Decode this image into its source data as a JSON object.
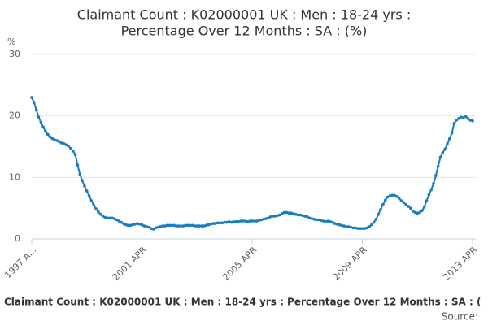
{
  "chart_data": {
    "type": "line",
    "title": [
      "Claimant Count : K02000001 UK : Men : 18-24 yrs :",
      "Percentage Over 12 Months : SA : (%)"
    ],
    "y_label": "%",
    "footer": "Claimant Count : K02000001 UK : Men : 18-24 yrs : Percentage Over 12 Months : SA : (",
    "source": "Source:",
    "x": [
      "1997 APR",
      "1997 MAY",
      "1997 JUN",
      "1997 JUL",
      "1997 AUG",
      "1997 SEP",
      "1997 OCT",
      "1997 NOV",
      "1997 DEC",
      "1998 JAN",
      "1998 FEB",
      "1998 MAR",
      "1998 APR",
      "1998 MAY",
      "1998 JUN",
      "1998 JUL",
      "1998 AUG",
      "1998 SEP",
      "1998 OCT",
      "1998 NOV",
      "1998 DEC",
      "1999 JAN",
      "1999 FEB",
      "1999 MAR",
      "1999 APR",
      "1999 MAY",
      "1999 JUN",
      "1999 JUL",
      "1999 AUG",
      "1999 SEP",
      "1999 OCT",
      "1999 NOV",
      "1999 DEC",
      "2000 JAN",
      "2000 FEB",
      "2000 MAR",
      "2000 APR",
      "2000 MAY",
      "2000 JUN",
      "2000 JUL",
      "2000 AUG",
      "2000 SEP",
      "2000 OCT",
      "2000 NOV",
      "2000 DEC",
      "2001 JAN",
      "2001 FEB",
      "2001 MAR",
      "2001 APR",
      "2001 MAY",
      "2001 JUN",
      "2001 JUL",
      "2001 AUG",
      "2001 SEP",
      "2001 OCT",
      "2001 NOV",
      "2001 DEC",
      "2002 JAN",
      "2002 FEB",
      "2002 MAR",
      "2002 APR",
      "2002 MAY",
      "2002 JUN",
      "2002 JUL",
      "2002 AUG",
      "2002 SEP",
      "2002 OCT",
      "2002 NOV",
      "2002 DEC",
      "2003 JAN",
      "2003 FEB",
      "2003 MAR",
      "2003 APR",
      "2003 MAY",
      "2003 JUN",
      "2003 JUL",
      "2003 AUG",
      "2003 SEP",
      "2003 OCT",
      "2003 NOV",
      "2003 DEC",
      "2004 JAN",
      "2004 FEB",
      "2004 MAR",
      "2004 APR",
      "2004 MAY",
      "2004 JUN",
      "2004 JUL",
      "2004 AUG",
      "2004 SEP",
      "2004 OCT",
      "2004 NOV",
      "2004 DEC",
      "2005 JAN",
      "2005 FEB",
      "2005 MAR",
      "2005 APR",
      "2005 MAY",
      "2005 JUN",
      "2005 JUL",
      "2005 AUG",
      "2005 SEP",
      "2005 OCT",
      "2005 NOV",
      "2005 DEC",
      "2006 JAN",
      "2006 FEB",
      "2006 MAR",
      "2006 APR",
      "2006 MAY",
      "2006 JUN",
      "2006 JUL",
      "2006 AUG",
      "2006 SEP",
      "2006 OCT",
      "2006 NOV",
      "2006 DEC",
      "2007 JAN",
      "2007 FEB",
      "2007 MAR",
      "2007 APR",
      "2007 MAY",
      "2007 JUN",
      "2007 JUL",
      "2007 AUG",
      "2007 SEP",
      "2007 OCT",
      "2007 NOV",
      "2007 DEC",
      "2008 JAN",
      "2008 FEB",
      "2008 MAR",
      "2008 APR",
      "2008 MAY",
      "2008 JUN",
      "2008 JUL",
      "2008 AUG",
      "2008 SEP",
      "2008 OCT",
      "2008 NOV",
      "2008 DEC",
      "2009 JAN",
      "2009 FEB",
      "2009 MAR",
      "2009 APR",
      "2009 MAY",
      "2009 JUN",
      "2009 JUL",
      "2009 AUG",
      "2009 SEP",
      "2009 OCT",
      "2009 NOV",
      "2009 DEC",
      "2010 JAN",
      "2010 FEB",
      "2010 MAR",
      "2010 APR",
      "2010 MAY",
      "2010 JUN",
      "2010 JUL",
      "2010 AUG",
      "2010 SEP",
      "2010 OCT",
      "2010 NOV",
      "2010 DEC",
      "2011 JAN",
      "2011 FEB",
      "2011 MAR",
      "2011 APR",
      "2011 MAY",
      "2011 JUN",
      "2011 JUL",
      "2011 AUG",
      "2011 SEP",
      "2011 OCT",
      "2011 NOV",
      "2011 DEC",
      "2012 JAN",
      "2012 FEB",
      "2012 MAR",
      "2012 APR",
      "2012 MAY",
      "2012 JUN",
      "2012 JUL",
      "2012 AUG",
      "2012 SEP",
      "2012 OCT",
      "2012 NOV",
      "2012 DEC",
      "2013 JAN",
      "2013 FEB",
      "2013 MAR",
      "2013 APR"
    ],
    "values": [
      23.0,
      22.2,
      21.0,
      19.8,
      19.0,
      18.2,
      17.5,
      17.0,
      16.6,
      16.3,
      16.1,
      16.0,
      15.8,
      15.6,
      15.5,
      15.3,
      15.1,
      14.7,
      14.3,
      13.7,
      12.0,
      10.5,
      9.5,
      8.6,
      7.8,
      7.0,
      6.2,
      5.5,
      4.9,
      4.4,
      4.0,
      3.7,
      3.5,
      3.4,
      3.4,
      3.4,
      3.3,
      3.1,
      2.9,
      2.7,
      2.5,
      2.3,
      2.2,
      2.2,
      2.3,
      2.4,
      2.5,
      2.4,
      2.3,
      2.1,
      2.0,
      1.9,
      1.7,
      1.6,
      1.8,
      1.9,
      2.0,
      2.1,
      2.1,
      2.2,
      2.2,
      2.2,
      2.2,
      2.1,
      2.1,
      2.1,
      2.1,
      2.2,
      2.2,
      2.2,
      2.2,
      2.1,
      2.1,
      2.1,
      2.1,
      2.1,
      2.2,
      2.3,
      2.4,
      2.5,
      2.5,
      2.6,
      2.6,
      2.6,
      2.7,
      2.7,
      2.8,
      2.7,
      2.8,
      2.8,
      2.8,
      2.9,
      2.9,
      2.9,
      2.8,
      2.9,
      2.9,
      2.9,
      2.9,
      3.0,
      3.1,
      3.2,
      3.3,
      3.4,
      3.6,
      3.7,
      3.7,
      3.8,
      3.9,
      4.1,
      4.3,
      4.3,
      4.2,
      4.2,
      4.1,
      4.0,
      3.9,
      3.9,
      3.8,
      3.7,
      3.6,
      3.4,
      3.3,
      3.2,
      3.1,
      3.1,
      3.0,
      2.9,
      2.8,
      2.9,
      2.8,
      2.7,
      2.5,
      2.4,
      2.3,
      2.2,
      2.1,
      2.0,
      2.0,
      1.9,
      1.8,
      1.8,
      1.7,
      1.7,
      1.7,
      1.7,
      1.8,
      2.0,
      2.3,
      2.7,
      3.2,
      4.0,
      4.8,
      5.6,
      6.3,
      6.8,
      7.0,
      7.1,
      7.1,
      6.9,
      6.6,
      6.2,
      5.9,
      5.6,
      5.3,
      5.0,
      4.5,
      4.3,
      4.2,
      4.3,
      4.6,
      5.2,
      6.2,
      7.2,
      8.0,
      9.0,
      10.3,
      11.8,
      13.3,
      14.0,
      14.6,
      15.4,
      16.3,
      17.2,
      18.8,
      19.3,
      19.6,
      19.8,
      19.7,
      19.9,
      19.6,
      19.3,
      19.2
    ],
    "color": "#1a7bbf",
    "ylim": [
      0,
      30
    ],
    "yticks": [
      0,
      10,
      20,
      30
    ],
    "xticks": [
      {
        "value": "1997 APR",
        "label": "1997 A..."
      },
      "2001 APR",
      "2005 APR",
      "2009 APR",
      "2013 APR"
    ],
    "grid": true
  }
}
